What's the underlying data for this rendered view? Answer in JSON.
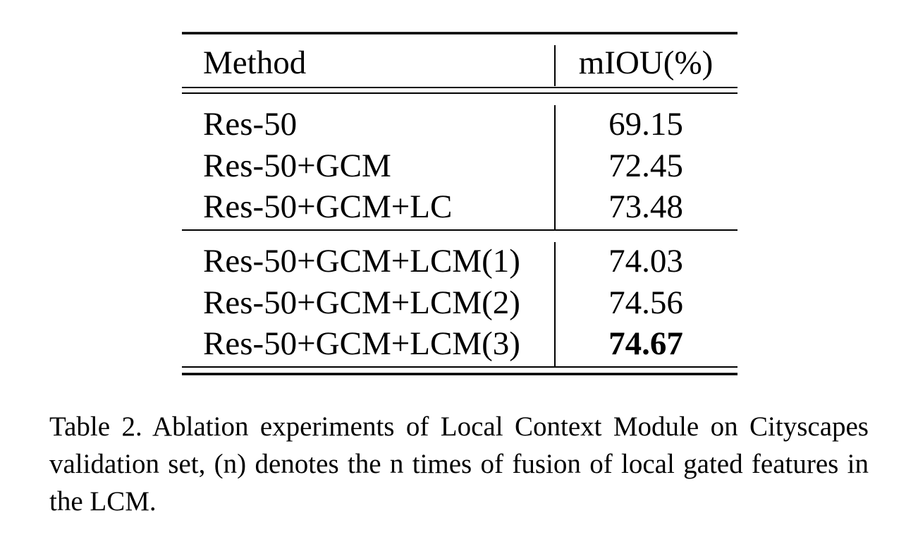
{
  "table": {
    "header": [
      "Method",
      "mIOU(%)"
    ],
    "groups": [
      [
        [
          "Res-50",
          69.15
        ],
        [
          "Res-50+GCM",
          72.45
        ],
        [
          "Res-50+GCM+LC",
          73.48
        ]
      ],
      [
        [
          "Res-50+GCM+LCM(1)",
          74.03
        ],
        [
          "Res-50+GCM+LCM(2)",
          74.56
        ],
        [
          "Res-50+GCM+LCM(3)",
          74.67
        ]
      ]
    ]
  },
  "caption": "Table 2. Ablation experiments of Local Context Module on Cityscapes validation set, (n) denotes the n times of fusion of local gated features in the LCM."
}
